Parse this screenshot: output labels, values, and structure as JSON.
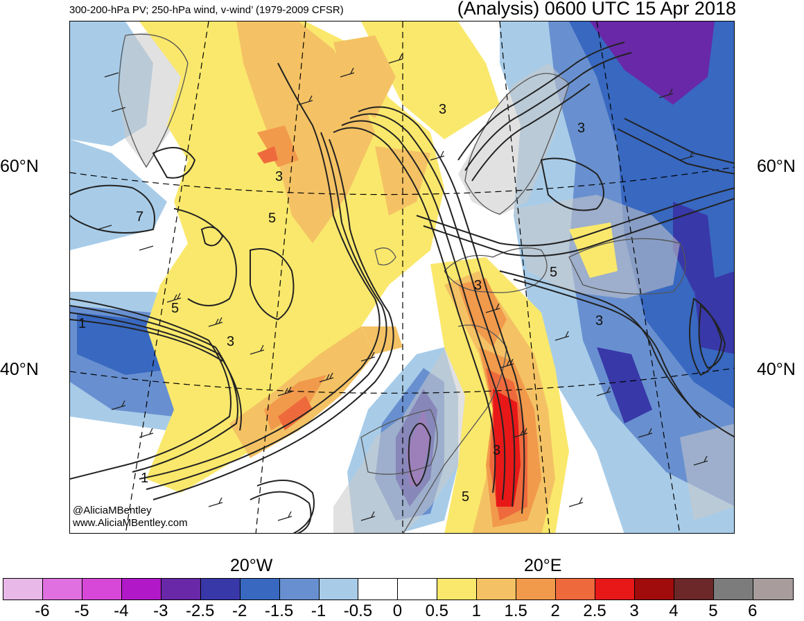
{
  "header": {
    "title_left": "300-200-hPa PV; 250-hPa wind, v-wind’ (1979-2009 CFSR)",
    "title_right": "(Analysis) 0600 UTC 15 Apr 2018"
  },
  "axes": {
    "lat_labels": [
      "60°N",
      "40°N"
    ],
    "lon_labels": [
      "20°W",
      "20°E"
    ]
  },
  "credits": {
    "twitter": "@AliciaMBentley",
    "website": "www.AliciaMBentley.com"
  },
  "contour_labels": [
    "1",
    "3",
    "5",
    "7"
  ],
  "colorbar": {
    "colors": [
      "#e8b8e8",
      "#e070e0",
      "#d848d8",
      "#b018c8",
      "#6828a8",
      "#3838a8",
      "#3868c0",
      "#6890d0",
      "#a8cce8",
      "#ffffff",
      "#ffffff",
      "#fae86c",
      "#f4c264",
      "#f19a4c",
      "#ee6a3c",
      "#e81818",
      "#a00c0c",
      "#6c2828",
      "#7c7c7c",
      "#a89c9c"
    ],
    "labels": [
      "-6",
      "-5",
      "-4",
      "-3",
      "-2.5",
      "-2",
      "-1.5",
      "-1",
      "-0.5",
      "0",
      "0.5",
      "1",
      "1.5",
      "2",
      "2.5",
      "3",
      "4",
      "5",
      "6"
    ]
  },
  "colors": {
    "land": "#c8c8c8",
    "coast": "#555555",
    "contour": "#222222"
  }
}
